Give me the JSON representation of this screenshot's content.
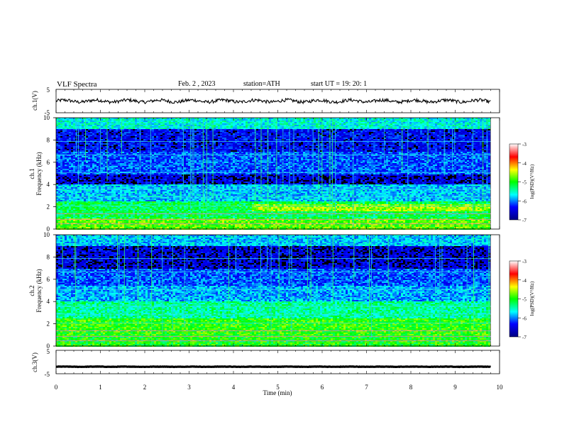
{
  "header": {
    "title": "VLF Spectra",
    "date": "Feb. 2 , 2023",
    "station": "station=ATH",
    "start": "start UT =  19: 20: 1"
  },
  "colors": {
    "spectrogram_background": "#000000",
    "waveform": "#000000"
  },
  "chart_data": [
    {
      "type": "line",
      "name": "ch1-waveform",
      "ylabel": "ch.1(V)",
      "ylim": [
        -5,
        5
      ],
      "yticks": [
        5,
        -5
      ],
      "xlim": [
        0,
        10
      ],
      "approx_level": 0,
      "grid": false
    },
    {
      "type": "heatmap",
      "name": "ch1-spectrogram",
      "ylabel": "ch.1\nFrequency (kHz)",
      "ylabel_lines": [
        "ch.1",
        "Frequency (kHz)"
      ],
      "ylim": [
        0,
        10
      ],
      "yticks": [
        "10",
        "8",
        "6",
        "4",
        "2",
        "0"
      ],
      "xlim": [
        0,
        10
      ],
      "data_end_x": 9.8,
      "colorbar": {
        "label": "log(PSD)(V²/Hz)",
        "range": [
          -7,
          -3
        ],
        "ticks": [
          "-3",
          "-4",
          "-5",
          "-6",
          "-7"
        ],
        "colormap": [
          "#000080",
          "#0000ff",
          "#00ffff",
          "#00ff00",
          "#ffff00",
          "#ff0000",
          "#ffffff"
        ]
      }
    },
    {
      "type": "heatmap",
      "name": "ch2-spectrogram",
      "ylabel": "ch.2\nFrequency (kHz)",
      "ylabel_lines": [
        "ch.2",
        "Frequency (kHz)"
      ],
      "ylim": [
        0,
        10
      ],
      "yticks": [
        "10",
        "8",
        "6",
        "4",
        "2",
        "0"
      ],
      "xlim": [
        0,
        10
      ],
      "data_end_x": 9.8,
      "colorbar": {
        "label": "log(PSD)(V²/Hz)",
        "range": [
          -7,
          -3
        ],
        "ticks": [
          "-3",
          "-4",
          "-5",
          "-6",
          "-7"
        ],
        "colormap": [
          "#000080",
          "#0000ff",
          "#00ffff",
          "#00ff00",
          "#ffff00",
          "#ff0000",
          "#ffffff"
        ]
      }
    },
    {
      "type": "line",
      "name": "ch3-waveform",
      "ylabel": "ch.3(V)",
      "ylim": [
        -5,
        5
      ],
      "yticks": [
        5,
        -5
      ],
      "xlim": [
        0,
        10
      ],
      "approx_level": -2,
      "grid": false
    }
  ],
  "xaxis": {
    "label": "Time (min)",
    "ticks": [
      "0",
      "1",
      "2",
      "3",
      "4",
      "5",
      "6",
      "7",
      "8",
      "9",
      "10"
    ]
  }
}
